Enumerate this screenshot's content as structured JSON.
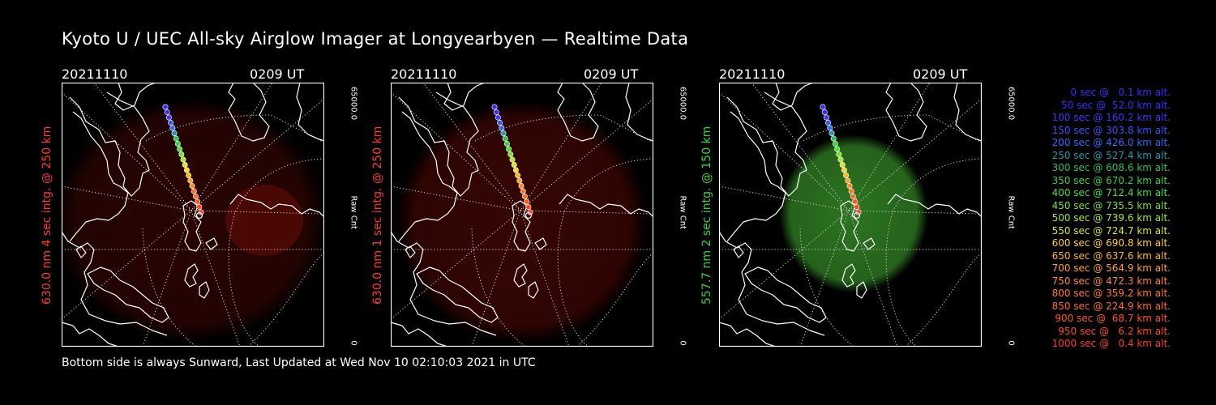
{
  "title": "Kyoto U / UEC All-sky Airglow Imager at Longyearbyen — Realtime Data",
  "footer": "Bottom side is always Sunward, Last Updated at Wed Nov 10 02:10:03 2021 in UTC",
  "panels": [
    {
      "date": "20211110",
      "time": "0209 UT",
      "label": "630.0 nm 4 sec intg. @ 250 km",
      "label_color": "#ff3a2a",
      "cbar_max": "65000.0",
      "cbar_min": "0",
      "cbar_title": "Raw Cnt",
      "cbar_color": "#ff3a00",
      "glow_color": "#5a0a05",
      "glow_opacity": 0.45
    },
    {
      "date": "20211110",
      "time": "0209 UT",
      "label": "630.0 nm 1 sec intg. @ 250 km",
      "label_color": "#ff3a2a",
      "cbar_max": "65000.0",
      "cbar_min": "0",
      "cbar_title": "Raw Cnt",
      "cbar_color": "#ff3a00",
      "glow_color": "#5a0a05",
      "glow_opacity": 0.6
    },
    {
      "date": "20211110",
      "time": "0209 UT",
      "label": "557.7 nm 2 sec intg. @ 150 km",
      "label_color": "#35d435",
      "cbar_max": "65000.0",
      "cbar_min": "0",
      "cbar_title": "Raw Cnt",
      "cbar_color": "#3fbf1a",
      "glow_color": "#2e7a22",
      "glow_opacity": 0.95
    }
  ],
  "legend": [
    {
      "text": "0 sec @   0.1 km alt.",
      "color": "#3b2bff"
    },
    {
      "text": "50 sec @  52.0 km alt.",
      "color": "#3b2bff"
    },
    {
      "text": "100 sec @ 160.2 km alt.",
      "color": "#3b35ff"
    },
    {
      "text": "150 sec @ 303.8 km alt.",
      "color": "#3455ff"
    },
    {
      "text": "200 sec @ 426.0 km alt.",
      "color": "#2b6bff"
    },
    {
      "text": "250 sec @ 527.4 km alt.",
      "color": "#1f9aa8"
    },
    {
      "text": "300 sec @ 608.6 km alt.",
      "color": "#25c25a"
    },
    {
      "text": "350 sec @ 670.2 km alt.",
      "color": "#35d43a"
    },
    {
      "text": "400 sec @ 712.4 km alt.",
      "color": "#45e030"
    },
    {
      "text": "450 sec @ 735.5 km alt.",
      "color": "#7ae02a"
    },
    {
      "text": "500 sec @ 739.6 km alt.",
      "color": "#a8e628"
    },
    {
      "text": "550 sec @ 724.7 km alt.",
      "color": "#d8e62a"
    },
    {
      "text": "600 sec @ 690.8 km alt.",
      "color": "#ffd21e"
    },
    {
      "text": "650 sec @ 637.6 km alt.",
      "color": "#ffb41e"
    },
    {
      "text": "700 sec @ 564.9 km alt.",
      "color": "#ffa01e"
    },
    {
      "text": "750 sec @ 472.3 km alt.",
      "color": "#ff8a1e"
    },
    {
      "text": "800 sec @ 359.2 km alt.",
      "color": "#ff781e"
    },
    {
      "text": "850 sec @ 224.9 km alt.",
      "color": "#ff6a1e"
    },
    {
      "text": "900 sec @  68.7 km alt.",
      "color": "#ff561e"
    },
    {
      "text": "950 sec @   6.2 km alt.",
      "color": "#ff4a1e"
    },
    {
      "text": "1000 sec @   0.4 km alt.",
      "color": "#ff3a1e"
    }
  ]
}
